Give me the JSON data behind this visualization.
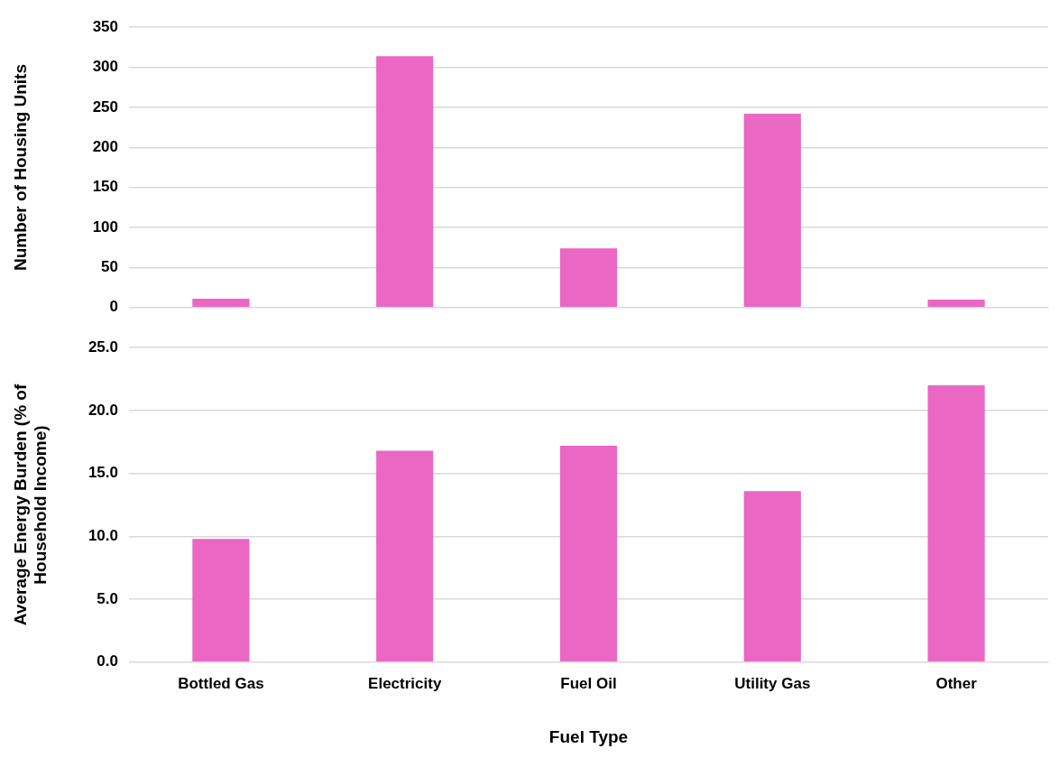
{
  "chart_data": [
    {
      "type": "bar",
      "categories": [
        null,
        null,
        null,
        null,
        null
      ],
      "values": [
        11,
        314,
        74,
        242,
        10
      ],
      "color": "#ea67c4",
      "ylabel": "Number of Housing Units",
      "ylim": [
        0,
        350
      ],
      "yticks": [
        0,
        50,
        100,
        150,
        200,
        250,
        300,
        350
      ],
      "grid": "y",
      "tick_labels": "y"
    },
    {
      "type": "bar",
      "categories": [
        "Bottled Gas",
        "Electricity",
        "Fuel Oil",
        "Utility Gas",
        "Other"
      ],
      "values": [
        9.8,
        16.8,
        17.2,
        13.6,
        22.0
      ],
      "color": "#ea67c4",
      "xlabel": "Fuel Type",
      "ylabel": "Average Energy Burden (% of Household Income)",
      "ylim": [
        0,
        25
      ],
      "yticks": [
        {
          "value": 0,
          "label": "0.0"
        },
        {
          "value": 5,
          "label": "5.0"
        },
        {
          "value": 10,
          "label": "10.0"
        },
        {
          "value": 15,
          "label": "15.0"
        },
        {
          "value": 20,
          "label": "20.0"
        },
        {
          "value": 25,
          "label": "25.0"
        }
      ],
      "grid": "y"
    }
  ]
}
